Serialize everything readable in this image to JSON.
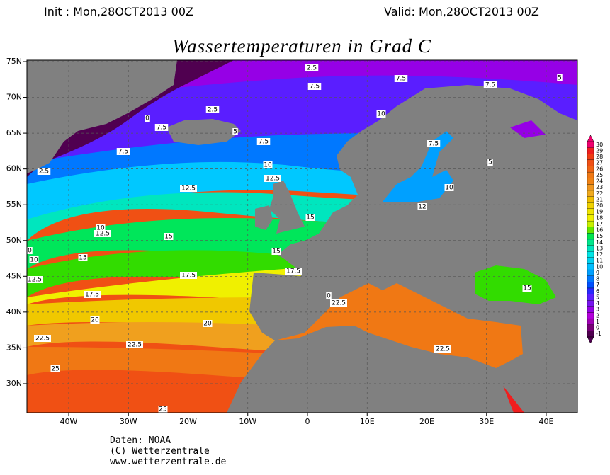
{
  "header": {
    "init": "Init : Mon,28OCT2013 00Z",
    "valid": "Valid: Mon,28OCT2013 00Z"
  },
  "title": "Wassertemperaturen in Grad C",
  "map": {
    "lat_labels": [
      "75N",
      "70N",
      "65N",
      "60N",
      "55N",
      "50N",
      "45N",
      "40N",
      "35N",
      "30N"
    ],
    "lon_labels": [
      "40W",
      "30W",
      "20W",
      "10W",
      "0",
      "10E",
      "20E",
      "30E",
      "40E"
    ],
    "contour_labels": [
      "2.5",
      "7.5",
      "7.5",
      "7.5",
      "5",
      "2.5",
      "0",
      "7.5",
      "5",
      "7.5",
      "7.5",
      "10",
      "10",
      "7.5",
      "5",
      "2.5",
      "12.5",
      "12.5",
      "10",
      "12",
      "10",
      "12.5",
      "15",
      "15",
      "15",
      "0",
      "10",
      "15",
      "17.5",
      "17.5",
      "12.5",
      "17.5",
      "15",
      "0",
      "22.5",
      "20",
      "20",
      "22.5",
      "22.5",
      "22.5",
      "25",
      "25"
    ]
  },
  "colorbar": {
    "values": [
      30,
      29,
      28,
      27,
      26,
      25,
      24,
      23,
      22,
      21,
      20,
      19,
      18,
      17,
      16,
      15,
      14,
      13,
      12,
      11,
      10,
      9,
      8,
      7,
      6,
      5,
      4,
      3,
      2,
      1,
      0,
      -1
    ],
    "colors": [
      "#f0006e",
      "#f01e1e",
      "#f03c14",
      "#f05014",
      "#f06414",
      "#f07814",
      "#f08214",
      "#f0961e",
      "#f0aa1e",
      "#f0be00",
      "#f0d200",
      "#f0e600",
      "#f0f000",
      "#c8f000",
      "#64e600",
      "#00e650",
      "#00e68c",
      "#00e6be",
      "#00e6e6",
      "#00d2f0",
      "#00beff",
      "#00a0ff",
      "#0078ff",
      "#0050ff",
      "#2828ff",
      "#5a1eff",
      "#7814f0",
      "#9600e6",
      "#b400dc",
      "#a000b4",
      "#780078",
      "#500050"
    ]
  },
  "footer": [
    "Daten: NOAA",
    "(C) Wetterzentrale",
    "www.wetterzentrale.de"
  ]
}
